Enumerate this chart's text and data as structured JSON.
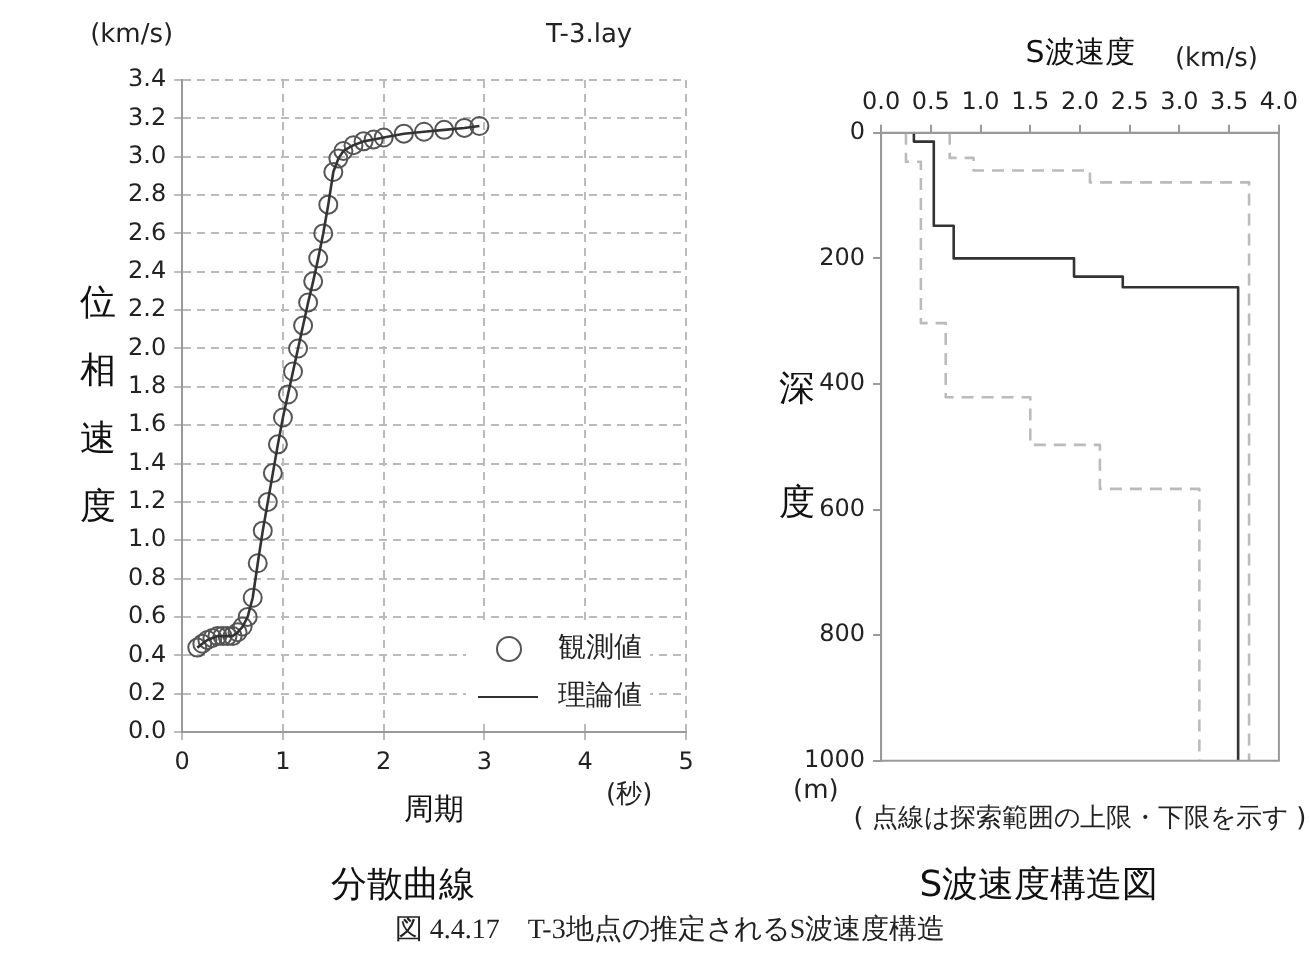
{
  "chart_data": [
    {
      "type": "scatter",
      "title": "分散曲線",
      "xlabel": "周期",
      "ylabel": "位相速度",
      "annotations": [
        "(km/s)",
        "T-3.lay",
        "(秒)"
      ],
      "xlim": [
        0,
        5
      ],
      "xticks": [
        0,
        1,
        2,
        3,
        4,
        5
      ],
      "ylim": [
        0,
        3.4
      ],
      "yticks": [
        {
          "value": 0,
          "label": "0.0"
        },
        {
          "value": 0.2,
          "label": "0.2"
        },
        {
          "value": 0.4,
          "label": "0.4"
        },
        {
          "value": 0.6,
          "label": "0.6"
        },
        {
          "value": 0.8,
          "label": "0.8"
        },
        {
          "value": 1,
          "label": "1.0"
        },
        {
          "value": 1.2,
          "label": "1.2"
        },
        {
          "value": 1.4,
          "label": "1.4"
        },
        {
          "value": 1.6,
          "label": "1.6"
        },
        {
          "value": 1.8,
          "label": "1.8"
        },
        {
          "value": 2,
          "label": "2.0"
        },
        {
          "value": 2.2,
          "label": "2.2"
        },
        {
          "value": 2.4,
          "label": "2.4"
        },
        {
          "value": 2.6,
          "label": "2.6"
        },
        {
          "value": 2.8,
          "label": "2.8"
        },
        {
          "value": 3,
          "label": "3.0"
        },
        {
          "value": 3.2,
          "label": "3.2"
        },
        {
          "value": 3.4,
          "label": "3.4"
        }
      ],
      "grid": true,
      "legend": "bottom right",
      "x": [
        0.15,
        0.2,
        0.25,
        0.3,
        0.35,
        0.4,
        0.45,
        0.5,
        0.55,
        0.6,
        0.65,
        0.7,
        0.75,
        0.8,
        0.85,
        0.9,
        0.95,
        1.0,
        1.05,
        1.1,
        1.15,
        1.2,
        1.25,
        1.3,
        1.35,
        1.4,
        1.45,
        1.5,
        1.55,
        1.6,
        1.7,
        1.8,
        1.9,
        2.0,
        2.2,
        2.4,
        2.6,
        2.8,
        2.95
      ],
      "series": [
        {
          "name": "観測値",
          "type": "scatter",
          "marker": "circle",
          "color": "#555555",
          "values": [
            0.44,
            0.46,
            0.48,
            0.49,
            0.5,
            0.5,
            0.5,
            0.5,
            0.52,
            0.55,
            0.6,
            0.7,
            0.88,
            1.05,
            1.2,
            1.35,
            1.5,
            1.64,
            1.76,
            1.88,
            2.0,
            2.12,
            2.24,
            2.35,
            2.47,
            2.6,
            2.75,
            2.92,
            2.99,
            3.03,
            3.06,
            3.08,
            3.09,
            3.1,
            3.12,
            3.13,
            3.14,
            3.15,
            3.16
          ]
        },
        {
          "name": "理論値",
          "type": "line",
          "line_style": "solid",
          "color": "#333333",
          "values": [
            0.44,
            0.46,
            0.48,
            0.49,
            0.5,
            0.5,
            0.5,
            0.5,
            0.52,
            0.55,
            0.6,
            0.7,
            0.88,
            1.05,
            1.2,
            1.35,
            1.5,
            1.64,
            1.76,
            1.88,
            2.0,
            2.12,
            2.24,
            2.35,
            2.47,
            2.6,
            2.75,
            2.92,
            2.99,
            3.03,
            3.06,
            3.08,
            3.09,
            3.1,
            3.12,
            3.13,
            3.14,
            3.15,
            3.16
          ]
        }
      ]
    },
    {
      "type": "line",
      "title": "S波速度構造図",
      "xlabel": "S波速度",
      "ylabel": "深度",
      "annotations": [
        "(km/s)",
        "(m)",
        "( 点線は探索範囲の上限・下限を示す )",
        "図 4.4.17　T-3地点の推定されるS波速度構造"
      ],
      "xlim": [
        0,
        4
      ],
      "xticks": [
        {
          "value": 0,
          "label": "0.0"
        },
        {
          "value": 0.5,
          "label": "0.5"
        },
        {
          "value": 1,
          "label": "1.0"
        },
        {
          "value": 1.5,
          "label": "1.5"
        },
        {
          "value": 2,
          "label": "2.0"
        },
        {
          "value": 2.5,
          "label": "2.5"
        },
        {
          "value": 3,
          "label": "3.0"
        },
        {
          "value": 3.5,
          "label": "3.5"
        },
        {
          "value": 4,
          "label": "4.0"
        }
      ],
      "ylim": [
        1000,
        0
      ],
      "yticks": [
        0,
        200,
        400,
        600,
        800,
        1000
      ],
      "grid": false,
      "legend": false,
      "series": [
        {
          "color": "#333333",
          "line_style": "solid",
          "x": [
            0.33,
            0.33,
            0.53,
            0.53,
            0.73,
            0.73,
            1.94,
            1.94,
            2.43,
            2.43,
            3.59,
            3.59
          ],
          "values": [
            0,
            14,
            14,
            148,
            148,
            200,
            200,
            229,
            229,
            246,
            246,
            1000
          ]
        },
        {
          "color": "#bbbbbb",
          "line_style": "dashed",
          "x": [
            0.25,
            0.25,
            0.4,
            0.4,
            0.65,
            0.65,
            1.5,
            1.5,
            2.2,
            2.2,
            3.2,
            3.2
          ],
          "values": [
            0,
            46,
            46,
            303,
            303,
            421,
            421,
            497,
            497,
            567,
            567,
            1000
          ]
        },
        {
          "color": "#bbbbbb",
          "line_style": "dashed",
          "x": [
            0.69,
            0.69,
            0.93,
            0.93,
            2.1,
            2.1,
            3.7,
            3.7
          ],
          "values": [
            0,
            40,
            40,
            60,
            60,
            79,
            79,
            1000
          ]
        }
      ]
    }
  ]
}
